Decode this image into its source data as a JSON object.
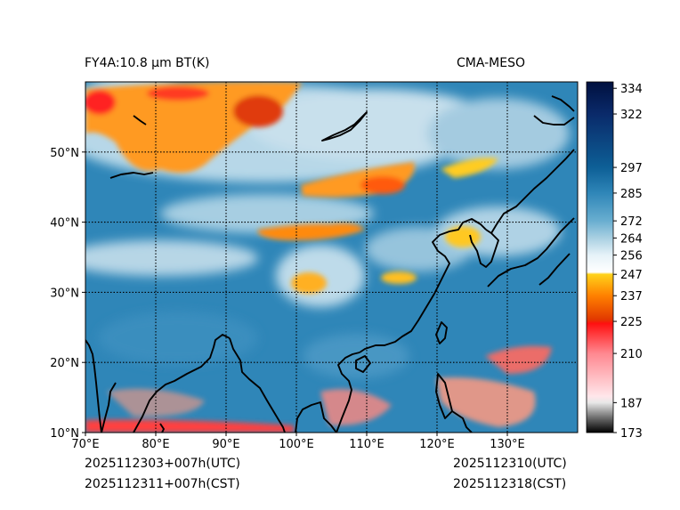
{
  "header": {
    "product": "FY4A:10.8 μm BT(K)",
    "source": "CMA-MESO"
  },
  "footer": {
    "init_utc": "2025112303+007h(UTC)",
    "init_cst": "2025112311+007h(CST)",
    "valid_utc": "2025112310(UTC)",
    "valid_cst": "2025112318(CST)"
  },
  "map": {
    "lon_range": [
      70,
      140
    ],
    "lat_range": [
      10,
      60
    ],
    "lon_ticks": [
      {
        "value": 70,
        "label": "70°E"
      },
      {
        "value": 80,
        "label": "80°E"
      },
      {
        "value": 90,
        "label": "90°E"
      },
      {
        "value": 100,
        "label": "100°E"
      },
      {
        "value": 110,
        "label": "110°E"
      },
      {
        "value": 120,
        "label": "120°E"
      },
      {
        "value": 130,
        "label": "130°E"
      }
    ],
    "lat_ticks": [
      {
        "value": 10,
        "label": "10°N"
      },
      {
        "value": 20,
        "label": "20°N"
      },
      {
        "value": 30,
        "label": "30°N"
      },
      {
        "value": 40,
        "label": "40°N"
      },
      {
        "value": 50,
        "label": "50°N"
      }
    ],
    "background_color": "#2f86b8"
  },
  "colorbar": {
    "range": [
      173,
      337
    ],
    "ticks": [
      {
        "value": 334,
        "label": "334"
      },
      {
        "value": 322,
        "label": "322"
      },
      {
        "value": 297,
        "label": "297"
      },
      {
        "value": 285,
        "label": "285"
      },
      {
        "value": 272,
        "label": "272"
      },
      {
        "value": 264,
        "label": "264"
      },
      {
        "value": 256,
        "label": "256"
      },
      {
        "value": 247,
        "label": "247"
      },
      {
        "value": 237,
        "label": "237"
      },
      {
        "value": 225,
        "label": "225"
      },
      {
        "value": 210,
        "label": "210"
      },
      {
        "value": 187,
        "label": "187"
      },
      {
        "value": 173,
        "label": "173"
      }
    ],
    "stops": [
      {
        "value": 173,
        "color": "#000000"
      },
      {
        "value": 180,
        "color": "#6e6e6e"
      },
      {
        "value": 187,
        "color": "#e8e8e8"
      },
      {
        "value": 190,
        "color": "#ffe6ea"
      },
      {
        "value": 210,
        "color": "#ff8890"
      },
      {
        "value": 224,
        "color": "#ff1010"
      },
      {
        "value": 226,
        "color": "#e23a00"
      },
      {
        "value": 237,
        "color": "#ff8000"
      },
      {
        "value": 247,
        "color": "#ffd21a"
      },
      {
        "value": 248,
        "color": "#ffffff"
      },
      {
        "value": 256,
        "color": "#e6f2f8"
      },
      {
        "value": 264,
        "color": "#a9d0e2"
      },
      {
        "value": 272,
        "color": "#69aed0"
      },
      {
        "value": 285,
        "color": "#2f86b8"
      },
      {
        "value": 297,
        "color": "#0d5f96"
      },
      {
        "value": 322,
        "color": "#0a2a6a"
      },
      {
        "value": 337,
        "color": "#00103f"
      }
    ]
  }
}
